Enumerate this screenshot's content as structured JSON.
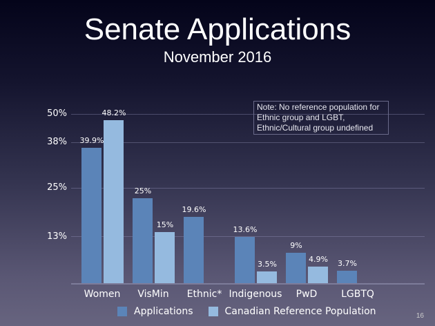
{
  "title": "Senate Applications",
  "subtitle": "November 2016",
  "note": "Note: No reference population for Ethnic group and LGBT, Ethnic/Cultural group undefined",
  "page_number": "16",
  "legend": [
    {
      "label": "Applications",
      "color": "#5b84b8"
    },
    {
      "label": "Canadian Reference Population",
      "color": "#95badf"
    }
  ],
  "yticks": [
    "50%",
    "38%",
    "25%",
    "13%"
  ],
  "chart_data": {
    "type": "bar",
    "title": "Senate Applications",
    "subtitle": "November 2016",
    "categories": [
      "Women",
      "VisMin",
      "Ethnic*",
      "Indigenous",
      "PwD",
      "LGBTQ"
    ],
    "series": [
      {
        "name": "Applications",
        "values": [
          39.9,
          25,
          19.6,
          13.6,
          9,
          3.7
        ],
        "labels": [
          "39.9%",
          "25%",
          "19.6%",
          "13.6%",
          "9%",
          "3.7%"
        ]
      },
      {
        "name": "Canadian Reference Population",
        "values": [
          48.2,
          15,
          null,
          3.5,
          4.9,
          null
        ],
        "labels": [
          "48.2%",
          "15%",
          "",
          "3.5%",
          "4.9%",
          ""
        ]
      }
    ],
    "ylim": [
      0,
      50
    ],
    "yticks": [
      13,
      25,
      38,
      50
    ],
    "grid": true,
    "legend_position": "bottom",
    "annotations": [
      "Note: No reference population for Ethnic group and LGBT, Ethnic/Cultural group undefined"
    ]
  }
}
